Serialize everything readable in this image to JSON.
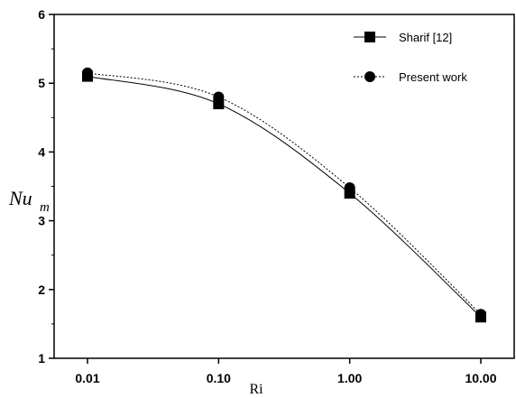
{
  "chart_data": {
    "type": "line",
    "title": "",
    "xlabel": "Ri",
    "ylabel": "Nu",
    "ylabel_subscript": "m",
    "x_scale": "log",
    "x": [
      0.01,
      0.1,
      1.0,
      10.0
    ],
    "x_tick_labels": [
      "0.01",
      "0.10",
      "1.00",
      "10.00"
    ],
    "y_ticks": [
      "1",
      "2",
      "3",
      "4",
      "5",
      "6"
    ],
    "ylim": [
      1,
      6
    ],
    "grid": false,
    "legend_position": "top-right",
    "series": [
      {
        "name": "Sharif [12]",
        "values": [
          5.1,
          4.7,
          3.4,
          1.6
        ],
        "line_style": "solid",
        "marker": "square",
        "color": "#000000"
      },
      {
        "name": "Present work",
        "values": [
          5.15,
          4.8,
          3.48,
          1.64
        ],
        "line_style": "dotted",
        "marker": "circle",
        "color": "#000000"
      }
    ]
  }
}
